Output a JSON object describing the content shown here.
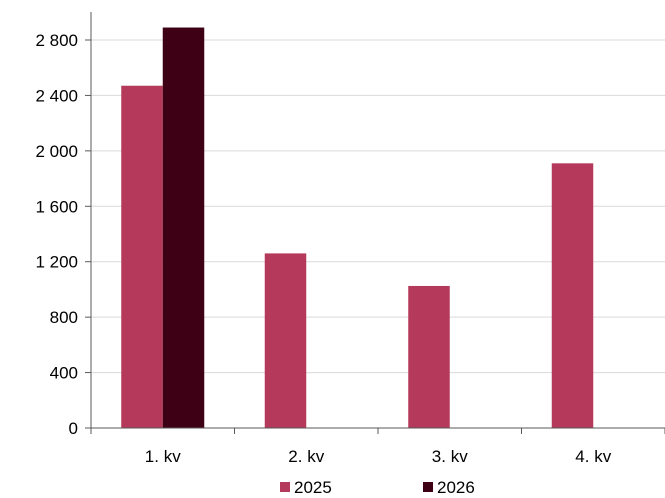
{
  "chart_data": {
    "type": "bar",
    "categories": [
      "1. kv",
      "2. kv",
      "3. kv",
      "4. kv"
    ],
    "series": [
      {
        "name": "2025",
        "values": [
          2470,
          1260,
          1025,
          1910
        ],
        "color": "#b5395a"
      },
      {
        "name": "2026",
        "values": [
          2890,
          null,
          null,
          null
        ],
        "color": "#3e0014"
      }
    ],
    "y_ticks": [
      "0",
      "400",
      "800",
      "1 200",
      "1 600",
      "2 000",
      "2 400",
      "2 800"
    ],
    "ylim": [
      0,
      2800
    ],
    "grid": true,
    "legend_position": "bottom"
  }
}
